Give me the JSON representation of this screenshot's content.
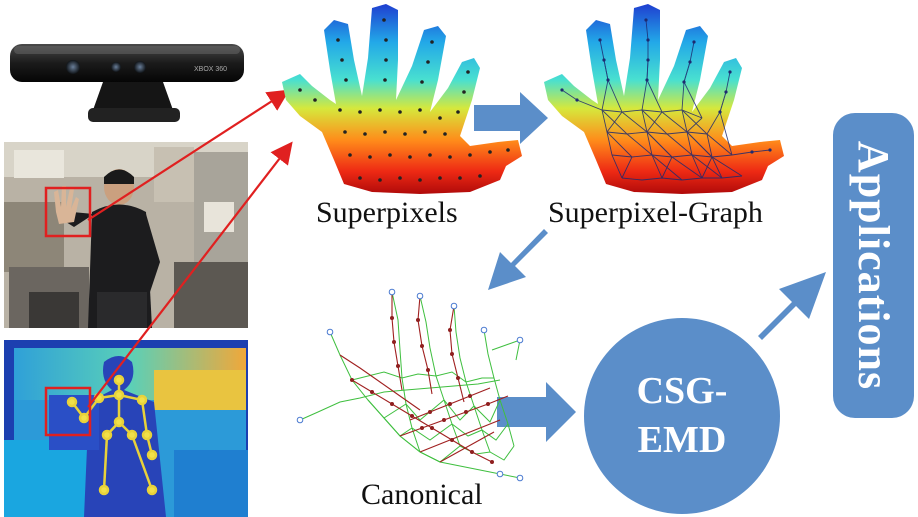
{
  "title": "",
  "stages": {
    "superpixels": "Superpixels",
    "superpixel_graph": "Superpixel-Graph",
    "canonical": "Canonical"
  },
  "csg_emd": {
    "line1": "CSG-",
    "line2": "EMD"
  },
  "applications": "Applications",
  "kinect_branding": "XBOX 360",
  "colors": {
    "arrow_fill": "#5b8ec9",
    "red_pointer": "#e02020",
    "graph_edge": "#2b3a8c",
    "canonical_green": "#3fbf3f",
    "canonical_red": "#a02020"
  },
  "icons": [
    "kinect-sensor-icon",
    "rgb-photo-icon",
    "depth-map-icon"
  ]
}
